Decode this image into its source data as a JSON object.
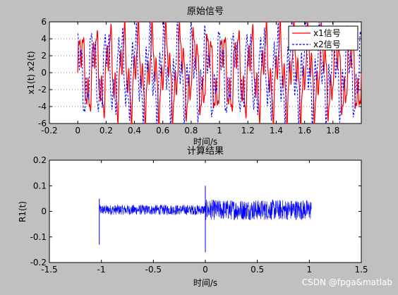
{
  "watermark": "CSDN @fpga&matlab",
  "chart_data": [
    {
      "type": "line",
      "title": "原始信号",
      "xlabel": "时间/s",
      "ylabel": "x1(t) x2(t)",
      "xlim": [
        -0.2,
        2.0
      ],
      "ylim": [
        -6,
        6
      ],
      "xticks": [
        -0.2,
        0,
        0.2,
        0.4,
        0.6,
        0.8,
        1,
        1.2,
        1.4,
        1.6,
        1.8
      ],
      "yticks": [
        -6,
        -4,
        -2,
        0,
        2,
        4,
        6
      ],
      "grid": "y-only",
      "legend": {
        "placement": "top-right"
      },
      "series": [
        {
          "name": "x1信号",
          "color": "#ff0000",
          "style": "solid",
          "x_range": [
            0,
            2.0
          ],
          "approx_period": 0.1,
          "amplitude": 6
        },
        {
          "name": "x2信号",
          "color": "#0000ff",
          "style": "dashed",
          "x_range": [
            0,
            2.0
          ],
          "approx_period": 0.1,
          "amplitude": 6
        }
      ]
    },
    {
      "type": "line",
      "title": "计算结果",
      "xlabel": "时间/s",
      "ylabel": "R1(t)",
      "xlim": [
        -1.5,
        1.5
      ],
      "ylim": [
        -0.2,
        0.2
      ],
      "xticks": [
        -1.5,
        -1,
        -0.5,
        0,
        0.5,
        1,
        1.5
      ],
      "yticks": [
        -0.2,
        -0.1,
        0,
        0.1,
        0.2
      ],
      "grid": "off",
      "series": [
        {
          "color": "#0000ff",
          "style": "solid",
          "x_range": [
            -1.02,
            1.02
          ],
          "noise_amplitude_left": 0.02,
          "noise_amplitude_right": 0.04,
          "spikes": [
            {
              "x": -1.02,
              "y": -0.13
            },
            {
              "x": -1.02,
              "y": 0.05
            },
            {
              "x": 0.0,
              "y": -0.16
            },
            {
              "x": 0.0,
              "y": 0.1
            }
          ]
        }
      ]
    }
  ]
}
